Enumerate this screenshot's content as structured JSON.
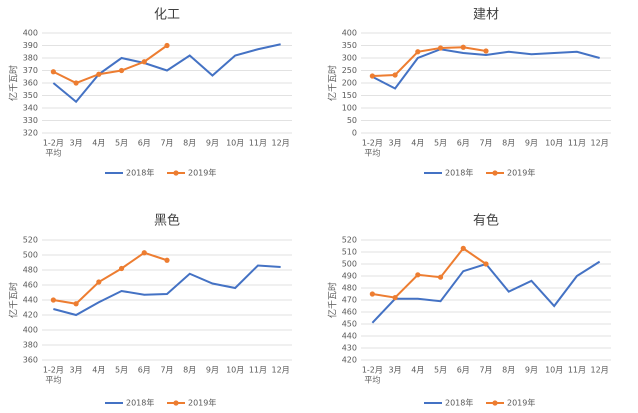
{
  "chart_data": [
    {
      "type": "line",
      "title": "化工",
      "ylabel": "亿千瓦时",
      "categories": [
        [
          "1-2月",
          "平均"
        ],
        [
          "3月"
        ],
        [
          "4月"
        ],
        [
          "5月"
        ],
        [
          "6月"
        ],
        [
          "7月"
        ],
        [
          "8月"
        ],
        [
          "9月"
        ],
        [
          "10月"
        ],
        [
          "11月"
        ],
        [
          "12月"
        ]
      ],
      "series": [
        {
          "name": "2018年",
          "color": "#4472c4",
          "markers": false,
          "values": [
            360,
            345,
            367,
            380,
            376,
            370,
            382,
            366,
            382,
            387,
            391
          ]
        },
        {
          "name": "2019年",
          "color": "#ed7d31",
          "markers": true,
          "values": [
            369,
            360,
            367,
            370,
            377,
            390,
            null,
            null,
            null,
            null,
            null
          ]
        }
      ],
      "ylim": [
        320,
        400
      ],
      "yticks": [
        320,
        330,
        340,
        350,
        360,
        370,
        380,
        390,
        400
      ],
      "grid": true,
      "legend": "bottom"
    },
    {
      "type": "line",
      "title": "建材",
      "ylabel": "亿千瓦时",
      "categories": [
        [
          "1-2月",
          "平均"
        ],
        [
          "3月"
        ],
        [
          "4月"
        ],
        [
          "5月"
        ],
        [
          "6月"
        ],
        [
          "7月"
        ],
        [
          "8月"
        ],
        [
          "9月"
        ],
        [
          "10月"
        ],
        [
          "11月"
        ],
        [
          "12月"
        ]
      ],
      "series": [
        {
          "name": "2018年",
          "color": "#4472c4",
          "markers": false,
          "values": [
            225,
            178,
            300,
            335,
            320,
            312,
            325,
            315,
            320,
            325,
            300
          ]
        },
        {
          "name": "2019年",
          "color": "#ed7d31",
          "markers": true,
          "values": [
            228,
            232,
            325,
            340,
            343,
            328,
            null,
            null,
            null,
            null,
            null
          ]
        }
      ],
      "ylim": [
        0,
        400
      ],
      "yticks": [
        0,
        50,
        100,
        150,
        200,
        250,
        300,
        350,
        400
      ],
      "grid": true,
      "legend": "bottom"
    },
    {
      "type": "line",
      "title": "黑色",
      "ylabel": "亿千瓦时",
      "categories": [
        [
          "1-2月",
          "平均"
        ],
        [
          "3月"
        ],
        [
          "4月"
        ],
        [
          "5月"
        ],
        [
          "6月"
        ],
        [
          "7月"
        ],
        [
          "8月"
        ],
        [
          "9月"
        ],
        [
          "10月"
        ],
        [
          "11月"
        ],
        [
          "12月"
        ]
      ],
      "series": [
        {
          "name": "2018年",
          "color": "#4472c4",
          "markers": false,
          "values": [
            428,
            420,
            437,
            452,
            447,
            448,
            475,
            462,
            456,
            486,
            484
          ]
        },
        {
          "name": "2019年",
          "color": "#ed7d31",
          "markers": true,
          "values": [
            440,
            435,
            464,
            482,
            503,
            493,
            null,
            null,
            null,
            null,
            null
          ]
        }
      ],
      "ylim": [
        360,
        520
      ],
      "yticks": [
        360,
        380,
        400,
        420,
        440,
        460,
        480,
        500,
        520
      ],
      "grid": true,
      "legend": "bottom"
    },
    {
      "type": "line",
      "title": "有色",
      "ylabel": "亿千瓦时",
      "categories": [
        [
          "1-2月",
          "平均"
        ],
        [
          "3月"
        ],
        [
          "4月"
        ],
        [
          "5月"
        ],
        [
          "6月"
        ],
        [
          "7月"
        ],
        [
          "8月"
        ],
        [
          "9月"
        ],
        [
          "10月"
        ],
        [
          "11月"
        ],
        [
          "12月"
        ]
      ],
      "series": [
        {
          "name": "2018年",
          "color": "#4472c4",
          "markers": false,
          "values": [
            451,
            471,
            471,
            469,
            494,
            500,
            477,
            486,
            465,
            490,
            502
          ]
        },
        {
          "name": "2019年",
          "color": "#ed7d31",
          "markers": true,
          "values": [
            475,
            472,
            491,
            489,
            513,
            500,
            null,
            null,
            null,
            null,
            null
          ]
        }
      ],
      "ylim": [
        420,
        520
      ],
      "yticks": [
        420,
        430,
        440,
        450,
        460,
        470,
        480,
        490,
        500,
        510,
        520
      ],
      "grid": true,
      "legend": "bottom"
    }
  ]
}
